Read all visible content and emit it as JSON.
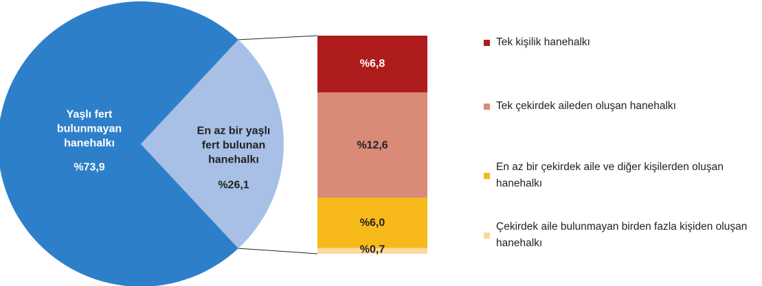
{
  "chart_data": [
    {
      "type": "pie",
      "categories": [
        "Yaşlı fert bulunmayan hanehalkı",
        "En az bir yaşlı fert bulunan hanehalkı"
      ],
      "values": [
        73.9,
        26.1
      ],
      "value_labels": [
        "%73,9",
        "%26,1"
      ],
      "colors": [
        "#2e7fca",
        "#a8c0e6"
      ]
    },
    {
      "type": "bar",
      "categories": [
        "Tek kişilik hanehalkı",
        "Tek çekirdek aileden oluşan hanehalkı",
        "En az bir çekirdek aile ve diğer kişilerden oluşan hanehalkı",
        "Çekirdek aile bulunmayan birden fazla kişiden oluşan hanehalkı"
      ],
      "values": [
        6.8,
        12.6,
        6.0,
        0.7
      ],
      "value_labels": [
        "%6,8",
        "%12,6",
        "%6,0",
        "%0,7"
      ],
      "colors": [
        "#ae1c1c",
        "#d98b78",
        "#f8b91a",
        "#fbd99c"
      ]
    }
  ]
}
